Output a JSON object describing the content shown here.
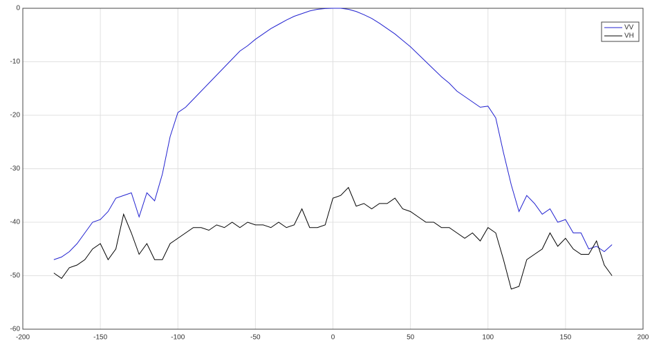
{
  "chart_data": {
    "type": "line",
    "x": [
      -180,
      -175,
      -170,
      -165,
      -160,
      -155,
      -150,
      -145,
      -140,
      -135,
      -130,
      -125,
      -120,
      -115,
      -110,
      -105,
      -100,
      -95,
      -90,
      -85,
      -80,
      -75,
      -70,
      -65,
      -60,
      -55,
      -50,
      -45,
      -40,
      -35,
      -30,
      -25,
      -20,
      -15,
      -10,
      -5,
      0,
      5,
      10,
      15,
      20,
      25,
      30,
      35,
      40,
      45,
      50,
      55,
      60,
      65,
      70,
      75,
      80,
      85,
      90,
      95,
      100,
      105,
      110,
      115,
      120,
      125,
      130,
      135,
      140,
      145,
      150,
      155,
      160,
      165,
      170,
      175,
      180
    ],
    "series": [
      {
        "name": "VV",
        "color": "#2020d0",
        "values": [
          -47,
          -46.5,
          -45.5,
          -44,
          -42,
          -40,
          -39.5,
          -38,
          -35.5,
          -35,
          -34.5,
          -39,
          -34.5,
          -36,
          -31,
          -24,
          -19.5,
          -18.5,
          -17,
          -15.5,
          -14,
          -12.5,
          -11,
          -9.5,
          -8,
          -7,
          -5.8,
          -4.8,
          -3.8,
          -3,
          -2.2,
          -1.5,
          -1,
          -0.5,
          -0.2,
          -0.05,
          0,
          0,
          -0.2,
          -0.6,
          -1.2,
          -1.9,
          -2.8,
          -3.8,
          -4.8,
          -6,
          -7.2,
          -8.6,
          -10,
          -11.4,
          -12.8,
          -14,
          -15.5,
          -16.5,
          -17.5,
          -18.5,
          -18.3,
          -20.5,
          -27,
          -33,
          -38,
          -35,
          -36.5,
          -38.5,
          -37.5,
          -40,
          -39.5,
          -42,
          -42,
          -45,
          -44.5,
          -45.5,
          -44.2
        ]
      },
      {
        "name": "VH",
        "color": "#000000",
        "values": [
          -49.5,
          -50.5,
          -48.5,
          -48,
          -47,
          -45,
          -44,
          -47,
          -45,
          -38.5,
          -42,
          -46,
          -44,
          -47,
          -47,
          -44,
          -43,
          -42,
          -41,
          -41,
          -41.5,
          -40.5,
          -41,
          -40,
          -41,
          -40,
          -40.5,
          -40.5,
          -41,
          -40,
          -41,
          -40.5,
          -37.5,
          -41,
          -41,
          -40.5,
          -35.5,
          -35,
          -33.5,
          -37,
          -36.5,
          -37.5,
          -36.5,
          -36.5,
          -35.5,
          -37.5,
          -38,
          -39,
          -40,
          -40,
          -41,
          -41,
          -42,
          -43,
          -42,
          -43.5,
          -41,
          -42,
          -47,
          -52.5,
          -52,
          -47,
          -46,
          -45,
          -42,
          -44.5,
          -43,
          -45,
          -46,
          -46,
          -43.5,
          -48,
          -50
        ]
      }
    ],
    "xlim": [
      -200,
      200
    ],
    "xticks": [
      -200,
      -150,
      -100,
      -50,
      0,
      50,
      100,
      150,
      200
    ],
    "ylim": [
      -60,
      0
    ],
    "yticks": [
      -60,
      -50,
      -40,
      -30,
      -20,
      -10,
      0
    ],
    "grid": true,
    "legend": "top-right"
  }
}
